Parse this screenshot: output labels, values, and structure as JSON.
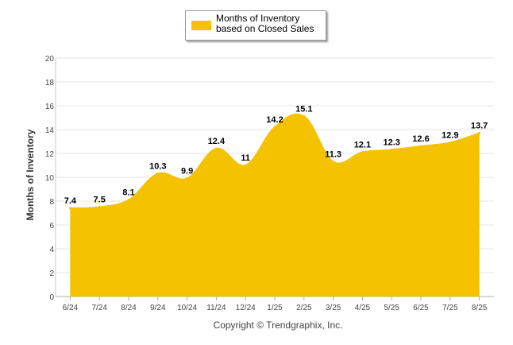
{
  "chart_data": {
    "type": "area",
    "categories": [
      "6/24",
      "7/24",
      "8/24",
      "9/24",
      "10/24",
      "11/24",
      "12/24",
      "1/25",
      "2/25",
      "3/25",
      "4/25",
      "5/25",
      "6/25",
      "7/25",
      "8/25"
    ],
    "series": [
      {
        "name": "Months of Inventory based on Closed Sales",
        "values": [
          7.4,
          7.5,
          8.1,
          10.3,
          9.9,
          12.4,
          11,
          14.2,
          15.1,
          11.3,
          12.1,
          12.3,
          12.6,
          12.9,
          13.7
        ]
      }
    ],
    "data_labels": [
      "7.4",
      "7.5",
      "8.1",
      "10.3",
      "9.9",
      "12.4",
      "11",
      "14.2",
      "15.1",
      "11.3",
      "12.1",
      "12.3",
      "12.6",
      "12.9",
      "13.7"
    ],
    "ylabel": "Months of Inventory",
    "xlabel": "",
    "ylim": [
      0,
      20
    ],
    "yticks": [
      "0",
      "2",
      "4",
      "6",
      "8",
      "10",
      "12",
      "14",
      "16",
      "18",
      "20"
    ],
    "grid": true,
    "legend_position": "top-center",
    "color": "#f5c200"
  },
  "footer": "Copyright © Trendgraphix, Inc."
}
